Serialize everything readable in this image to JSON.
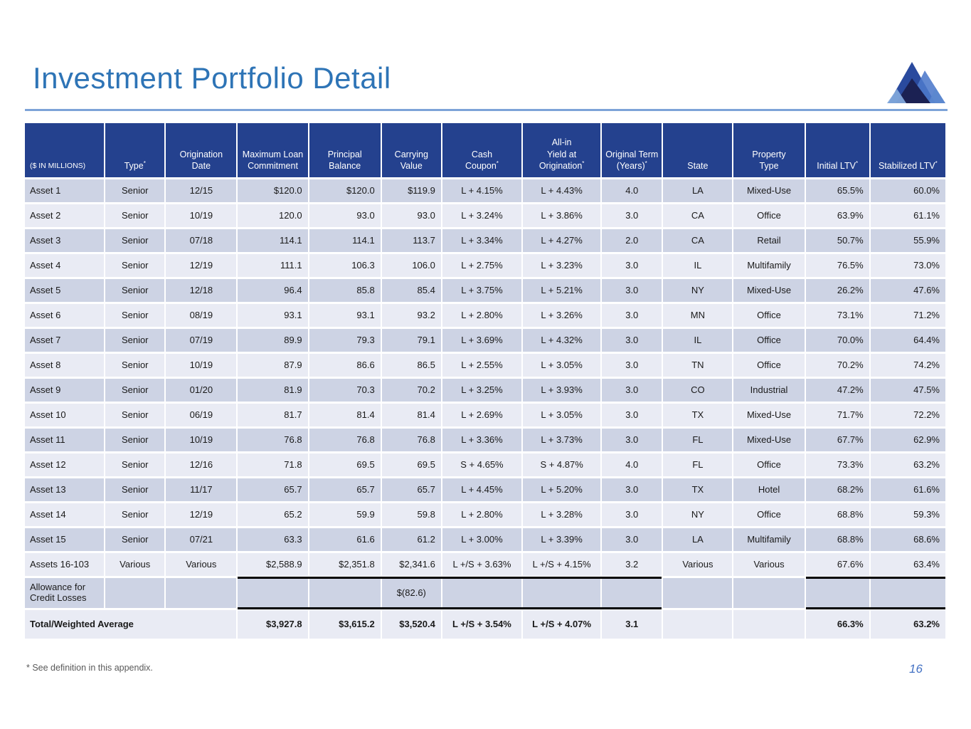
{
  "slide": {
    "title": "Investment Portfolio Detail",
    "footnote": "* See definition in this appendix.",
    "page_number": "16"
  },
  "colors": {
    "title": "#2E74B6",
    "accent_line": "#7DA3D8",
    "header_bg": "#24418E",
    "header_text": "#FFFFFF",
    "row_dark": "#CDD3E4",
    "row_light": "#E9EBF4",
    "body_text": "#1A1A1A",
    "footnote_text": "#595959",
    "page_number": "#4472C4",
    "divider_black": "#000000",
    "logo": {
      "peak_main": "#2A4A9E",
      "peak_right": "#4C79CB",
      "peak_shadow": "#1B2153",
      "peak_light": "#7FA6DB",
      "peak_far_right": "#5C88CF"
    }
  },
  "table": {
    "columns": [
      "($ IN MILLIONS)",
      "Type*",
      "Origination\nDate",
      "Maximum Loan\nCommitment",
      "Principal\nBalance",
      "Carrying\nValue",
      "Cash\nCoupon*",
      "All-in\nYield at\nOrigination*",
      "Original Term\n(Years)*",
      "State",
      "Property\nType",
      "Initial LTV*",
      "Stabilized LTV*"
    ],
    "rows": [
      {
        "cells": [
          "Asset 1",
          "Senior",
          "12/15",
          "$120.0",
          "$120.0",
          "$119.9",
          "L + 4.15%",
          "L + 4.43%",
          "4.0",
          "LA",
          "Mixed-Use",
          "65.5%",
          "60.0%"
        ]
      },
      {
        "cells": [
          "Asset 2",
          "Senior",
          "10/19",
          "120.0",
          "93.0",
          "93.0",
          "L + 3.24%",
          "L + 3.86%",
          "3.0",
          "CA",
          "Office",
          "63.9%",
          "61.1%"
        ]
      },
      {
        "cells": [
          "Asset 3",
          "Senior",
          "07/18",
          "114.1",
          "114.1",
          "113.7",
          "L + 3.34%",
          "L + 4.27%",
          "2.0",
          "CA",
          "Retail",
          "50.7%",
          "55.9%"
        ]
      },
      {
        "cells": [
          "Asset 4",
          "Senior",
          "12/19",
          "111.1",
          "106.3",
          "106.0",
          "L + 2.75%",
          "L + 3.23%",
          "3.0",
          "IL",
          "Multifamily",
          "76.5%",
          "73.0%"
        ]
      },
      {
        "cells": [
          "Asset 5",
          "Senior",
          "12/18",
          "96.4",
          "85.8",
          "85.4",
          "L + 3.75%",
          "L + 5.21%",
          "3.0",
          "NY",
          "Mixed-Use",
          "26.2%",
          "47.6%"
        ]
      },
      {
        "cells": [
          "Asset 6",
          "Senior",
          "08/19",
          "93.1",
          "93.1",
          "93.2",
          "L + 2.80%",
          "L + 3.26%",
          "3.0",
          "MN",
          "Office",
          "73.1%",
          "71.2%"
        ]
      },
      {
        "cells": [
          "Asset 7",
          "Senior",
          "07/19",
          "89.9",
          "79.3",
          "79.1",
          "L + 3.69%",
          "L + 4.32%",
          "3.0",
          "IL",
          "Office",
          "70.0%",
          "64.4%"
        ]
      },
      {
        "cells": [
          "Asset 8",
          "Senior",
          "10/19",
          "87.9",
          "86.6",
          "86.5",
          "L + 2.55%",
          "L + 3.05%",
          "3.0",
          "TN",
          "Office",
          "70.2%",
          "74.2%"
        ]
      },
      {
        "cells": [
          "Asset 9",
          "Senior",
          "01/20",
          "81.9",
          "70.3",
          "70.2",
          "L + 3.25%",
          "L + 3.93%",
          "3.0",
          "CO",
          "Industrial",
          "47.2%",
          "47.5%"
        ]
      },
      {
        "cells": [
          "Asset 10",
          "Senior",
          "06/19",
          "81.7",
          "81.4",
          "81.4",
          "L + 2.69%",
          "L + 3.05%",
          "3.0",
          "TX",
          "Mixed-Use",
          "71.7%",
          "72.2%"
        ]
      },
      {
        "cells": [
          "Asset 11",
          "Senior",
          "10/19",
          "76.8",
          "76.8",
          "76.8",
          "L + 3.36%",
          "L + 3.73%",
          "3.0",
          "FL",
          "Mixed-Use",
          "67.7%",
          "62.9%"
        ]
      },
      {
        "cells": [
          "Asset 12",
          "Senior",
          "12/16",
          "71.8",
          "69.5",
          "69.5",
          "S + 4.65%",
          "S + 4.87%",
          "4.0",
          "FL",
          "Office",
          "73.3%",
          "63.2%"
        ]
      },
      {
        "cells": [
          "Asset 13",
          "Senior",
          "11/17",
          "65.7",
          "65.7",
          "65.7",
          "L + 4.45%",
          "L + 5.20%",
          "3.0",
          "TX",
          "Hotel",
          "68.2%",
          "61.6%"
        ]
      },
      {
        "cells": [
          "Asset 14",
          "Senior",
          "12/19",
          "65.2",
          "59.9",
          "59.8",
          "L + 2.80%",
          "L + 3.28%",
          "3.0",
          "NY",
          "Office",
          "68.8%",
          "59.3%"
        ]
      },
      {
        "cells": [
          "Asset 15",
          "Senior",
          "07/21",
          "63.3",
          "61.6",
          "61.2",
          "L + 3.00%",
          "L + 3.39%",
          "3.0",
          "LA",
          "Multifamily",
          "68.8%",
          "68.6%"
        ]
      },
      {
        "cells": [
          "Assets 16-103",
          "Various",
          "Various",
          "$2,588.9",
          "$2,351.8",
          "$2,341.6",
          "L +/S + 3.63%",
          "L +/S + 4.15%",
          "3.2",
          "Various",
          "Various",
          "67.6%",
          "63.4%"
        ]
      },
      {
        "variant": "allowance",
        "cells": [
          "Allowance for\nCredit Losses",
          "",
          "",
          "",
          "",
          "$(82.6)",
          "",
          "",
          "",
          "",
          "",
          "",
          ""
        ]
      },
      {
        "variant": "total",
        "colspan": 3,
        "cells": [
          "Total/Weighted Average",
          "$3,927.8",
          "$3,615.2",
          "$3,520.4",
          "L +/S + 3.54%",
          "L +/S + 4.07%",
          "3.1",
          "",
          "",
          "66.3%",
          "63.2%"
        ]
      }
    ]
  }
}
